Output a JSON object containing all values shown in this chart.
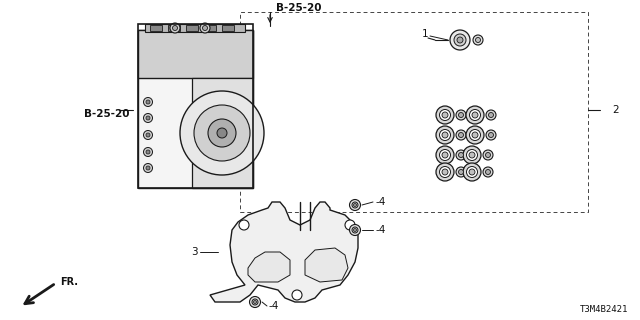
{
  "bg_color": "#ffffff",
  "line_color": "#1a1a1a",
  "text_color": "#111111",
  "dash_color": "#444444",
  "label_b2520_top": "B-25-20",
  "label_b2520_left": "B-25-20",
  "label_1": "1",
  "label_2": "2",
  "label_3": "3",
  "label_4": "4",
  "part_number": "T3M4B2421",
  "fr_label": "FR.",
  "font_size_label": 7.5,
  "font_size_small": 6.5
}
